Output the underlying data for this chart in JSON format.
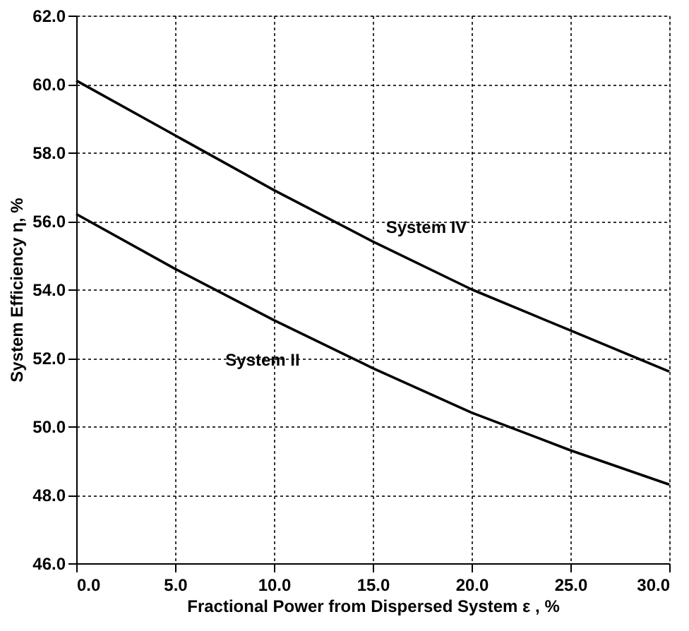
{
  "chart_data": {
    "type": "line",
    "xlabel": "Fractional Power from Dispersed System  ε  , %",
    "ylabel": "System Efficiency η, %",
    "x": [
      0,
      5,
      10,
      15,
      20,
      25,
      30
    ],
    "series": [
      {
        "name": "System IV",
        "color": "#000000",
        "values": [
          60.1,
          58.5,
          56.9,
          55.4,
          54.0,
          52.8,
          51.6
        ]
      },
      {
        "name": "System II",
        "color": "#000000",
        "values": [
          56.2,
          54.6,
          53.1,
          51.7,
          50.4,
          49.3,
          48.3
        ]
      }
    ],
    "xlim": [
      0,
      30
    ],
    "xticks": [
      {
        "value": 0,
        "label": "0.0"
      },
      {
        "value": 5,
        "label": "5.0"
      },
      {
        "value": 10,
        "label": "10.0"
      },
      {
        "value": 15,
        "label": "15.0"
      },
      {
        "value": 20,
        "label": "20.0"
      },
      {
        "value": 25,
        "label": "25.0"
      },
      {
        "value": 30,
        "label": "30.0"
      }
    ],
    "ylim": [
      46,
      62
    ],
    "yticks": [
      {
        "value": 46,
        "label": "46.0"
      },
      {
        "value": 48,
        "label": "48.0"
      },
      {
        "value": 50,
        "label": "50.0"
      },
      {
        "value": 52,
        "label": "52.0"
      },
      {
        "value": 54,
        "label": "54.0"
      },
      {
        "value": 56,
        "label": "56.0"
      },
      {
        "value": 58,
        "label": "58.0"
      },
      {
        "value": 60,
        "label": "60.0"
      },
      {
        "value": 62,
        "label": "62.0"
      }
    ],
    "grid": true,
    "marker": "none",
    "line_style": "solid"
  }
}
